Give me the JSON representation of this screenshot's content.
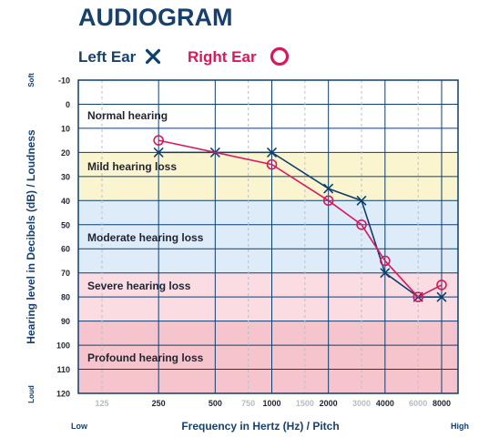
{
  "chart_data": {
    "type": "line",
    "title": "AUDIOGRAM",
    "xlabel": "Frequency in Hertz (Hz) / Pitch",
    "ylabel": "Hearing level in Decibels (dB) / Loudness",
    "x_low_label": "Low",
    "x_high_label": "High",
    "y_top_label": "Soft",
    "y_bottom_label": "Loud",
    "x_scale": "log",
    "y_inverted": true,
    "ylim": [
      -10,
      120
    ],
    "y_ticks": [
      "-10",
      "0",
      "10",
      "20",
      "30",
      "40",
      "50",
      "60",
      "70",
      "80",
      "90",
      "100",
      "110",
      "120"
    ],
    "x_ticks": [
      {
        "value": 125,
        "label": "125",
        "major": false
      },
      {
        "value": 250,
        "label": "250",
        "major": true
      },
      {
        "value": 500,
        "label": "500",
        "major": true
      },
      {
        "value": 750,
        "label": "750",
        "major": false
      },
      {
        "value": 1000,
        "label": "1000",
        "major": true
      },
      {
        "value": 1500,
        "label": "1500",
        "major": false
      },
      {
        "value": 2000,
        "label": "2000",
        "major": true
      },
      {
        "value": 3000,
        "label": "3000",
        "major": false
      },
      {
        "value": 4000,
        "label": "4000",
        "major": true
      },
      {
        "value": 6000,
        "label": "6000",
        "major": false
      },
      {
        "value": 8000,
        "label": "8000",
        "major": true
      }
    ],
    "bands": [
      {
        "label": "Normal hearing",
        "from": -10,
        "to": 20,
        "color": "#ffffff"
      },
      {
        "label": "Mild hearing loss",
        "from": 20,
        "to": 40,
        "color": "#fbf5cf"
      },
      {
        "label": "Moderate hearing loss",
        "from": 40,
        "to": 70,
        "color": "#deebf8"
      },
      {
        "label": "Severe hearing loss",
        "from": 70,
        "to": 90,
        "color": "#fbdce3"
      },
      {
        "label": "Profound hearing loss",
        "from": 90,
        "to": 120,
        "color": "#f6c4cc"
      }
    ],
    "series": [
      {
        "name": "Left Ear",
        "marker": "x",
        "color": "#0d3f6e",
        "x": [
          250,
          500,
          1000,
          2000,
          3000,
          4000,
          6000,
          8000
        ],
        "y": [
          20,
          20,
          20,
          35,
          40,
          70,
          80,
          80
        ]
      },
      {
        "name": "Right Ear",
        "marker": "o",
        "color": "#d8175f",
        "x": [
          250,
          1000,
          2000,
          3000,
          4000,
          6000,
          8000
        ],
        "y": [
          15,
          25,
          40,
          50,
          65,
          80,
          75
        ]
      }
    ],
    "grid": true,
    "legend": "top"
  }
}
